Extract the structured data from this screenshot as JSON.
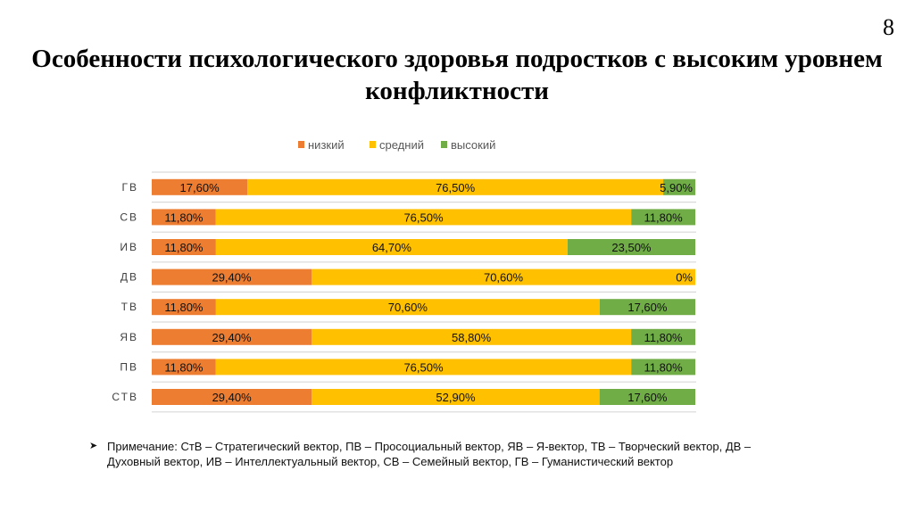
{
  "page_number": "8",
  "title": "Особенности психологического здоровья подростков с высоким уровнем конфликтности",
  "note": "Примечание: СтВ – Стратегический вектор, ПВ – Просоциальный вектор, ЯВ – Я-вектор, ТВ – Творческий вектор, ДВ – Духовный вектор, ИВ – Интеллектуальный вектор, СВ – Семейный вектор, ГВ – Гуманистический вектор",
  "chart_data": {
    "type": "bar",
    "stacked": "100%",
    "orientation": "horizontal",
    "title": "",
    "legend_position": "top",
    "categories": [
      "ГВ",
      "СВ",
      "ИВ",
      "ДВ",
      "ТВ",
      "ЯВ",
      "ПВ",
      "СТВ"
    ],
    "series": [
      {
        "name": "низкий",
        "color": "#ED7D31",
        "values": [
          17.6,
          11.8,
          11.8,
          29.4,
          11.8,
          29.4,
          11.8,
          29.4
        ],
        "labels": [
          "17,60%",
          "11,80%",
          "11,80%",
          "29,40%",
          "11,80%",
          "29,40%",
          "11,80%",
          "29,40%"
        ]
      },
      {
        "name": "средний",
        "color": "#FFC000",
        "values": [
          76.5,
          76.5,
          64.7,
          70.6,
          70.6,
          58.8,
          76.5,
          52.9
        ],
        "labels": [
          "76,50%",
          "76,50%",
          "64,70%",
          "70,60%",
          "70,60%",
          "58,80%",
          "76,50%",
          "52,90%"
        ]
      },
      {
        "name": "высокий",
        "color": "#70AD47",
        "values": [
          5.9,
          11.8,
          23.5,
          0,
          17.6,
          11.8,
          11.8,
          17.6
        ],
        "labels": [
          "5,90%",
          "11,80%",
          "23,50%",
          "0%",
          "17,60%",
          "11,80%",
          "11,80%",
          "17,60%"
        ]
      }
    ]
  }
}
